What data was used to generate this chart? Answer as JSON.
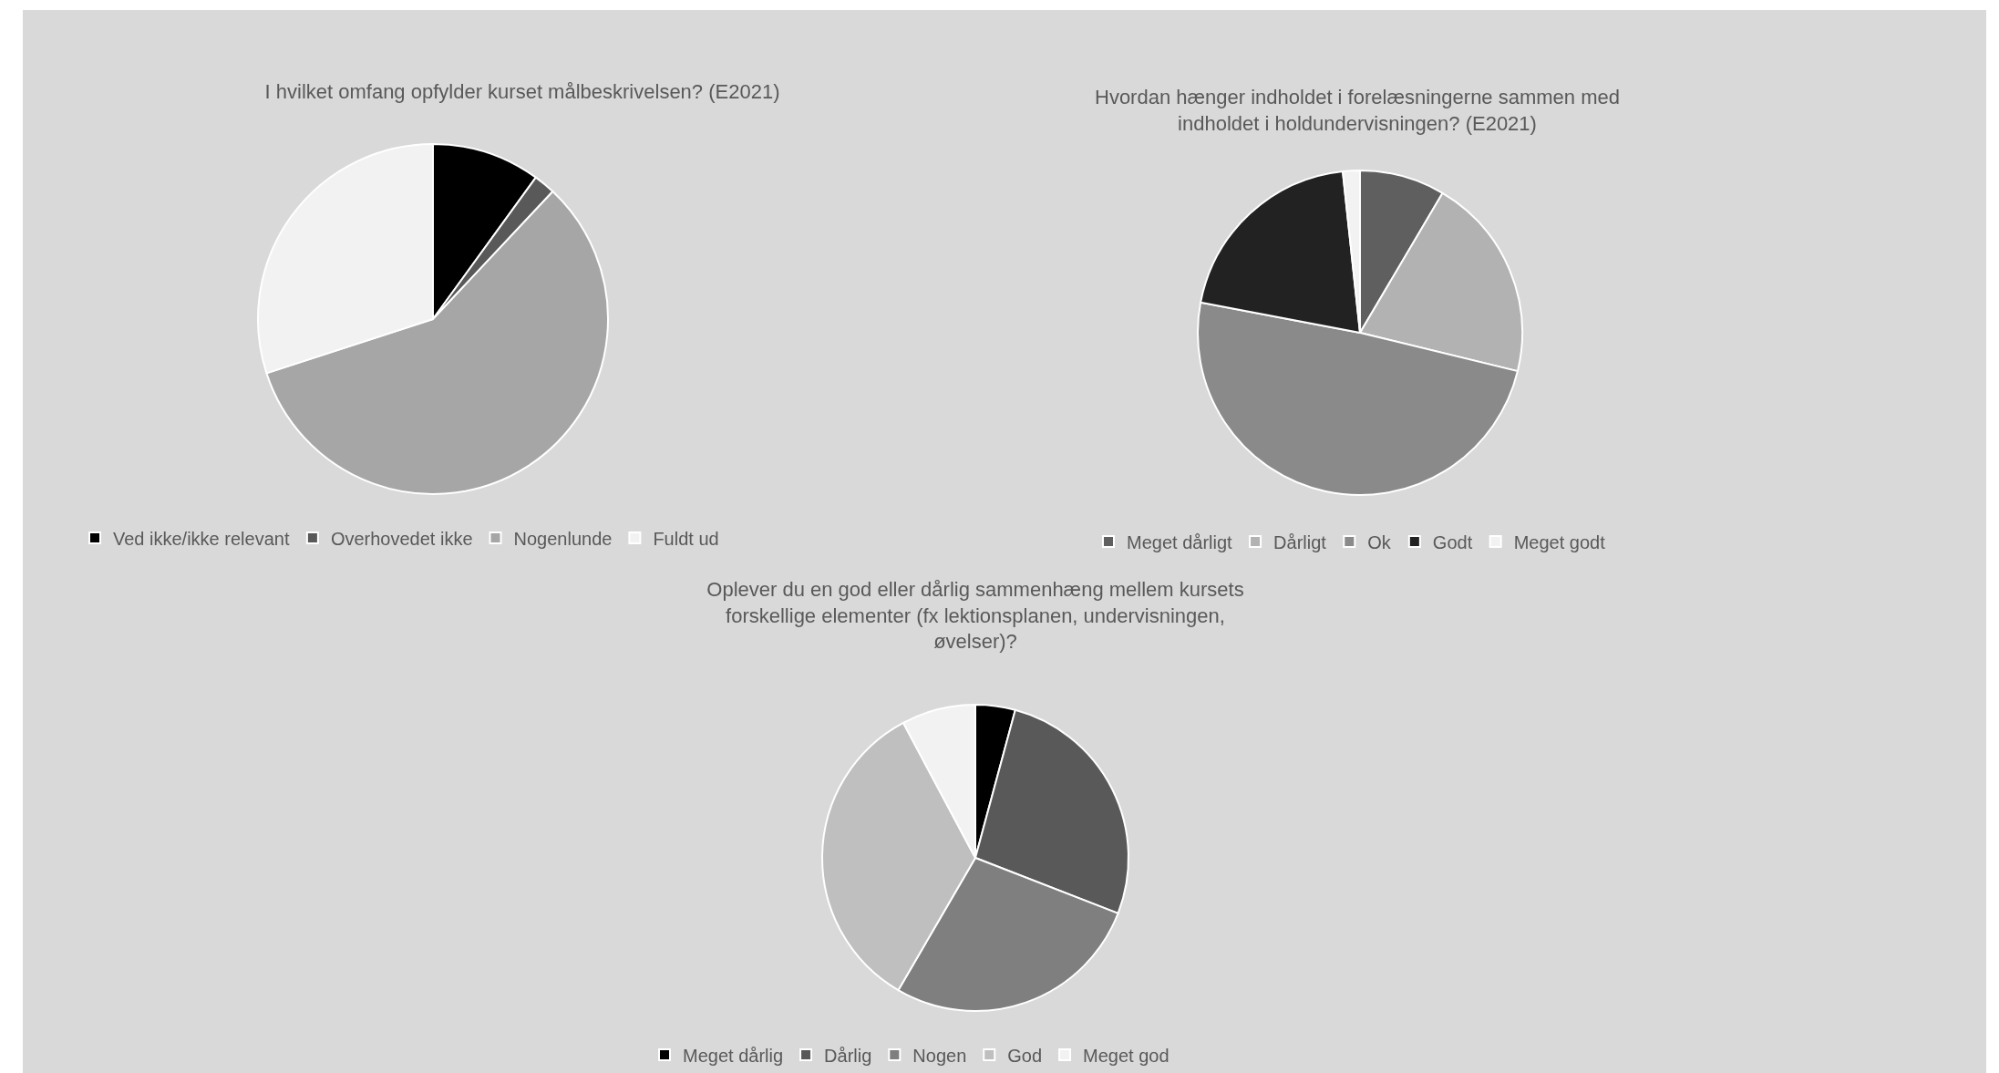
{
  "chart_data": [
    {
      "type": "pie",
      "title": "I hvilket omfang opfylder kurset målbeskrivelsen? (E2021)",
      "categories": [
        "Ved ikke/ikke relevant",
        "Overhovedet ikke",
        "Nogenlunde",
        "Fuldt ud"
      ],
      "values": [
        10,
        2,
        58,
        30
      ],
      "colors": [
        "#000000",
        "#595959",
        "#a6a6a6",
        "#f2f2f2"
      ],
      "legend": "bottom"
    },
    {
      "type": "pie",
      "title": "Hvordan hænger indholdet i forelæsningerne sammen med indholdet i holdundervisningen? (E2021)",
      "categories": [
        "Meget dårligt",
        "Dårligt",
        "Ok",
        "Godt",
        "Meget godt"
      ],
      "values": [
        8.5,
        20.3,
        49.2,
        20.3,
        1.7
      ],
      "colors": [
        "#5f5f5f",
        "#b2b2b2",
        "#8a8a8a",
        "#222222",
        "#f2f2f2"
      ],
      "legend": "bottom"
    },
    {
      "type": "pie",
      "title": "Oplever du en god eller dårlig sammenhæng mellem kursets forskellige elementer (fx lektionsplanen, undervisningen, øvelser)?",
      "categories": [
        "Meget dårlig",
        "Dårlig",
        "Nogen",
        "God",
        "Meget god"
      ],
      "values": [
        4.2,
        26.7,
        27.5,
        33.8,
        7.8
      ],
      "colors": [
        "#000000",
        "#595959",
        "#7f7f7f",
        "#bfbfbf",
        "#f2f2f2"
      ],
      "legend": "bottom"
    }
  ]
}
